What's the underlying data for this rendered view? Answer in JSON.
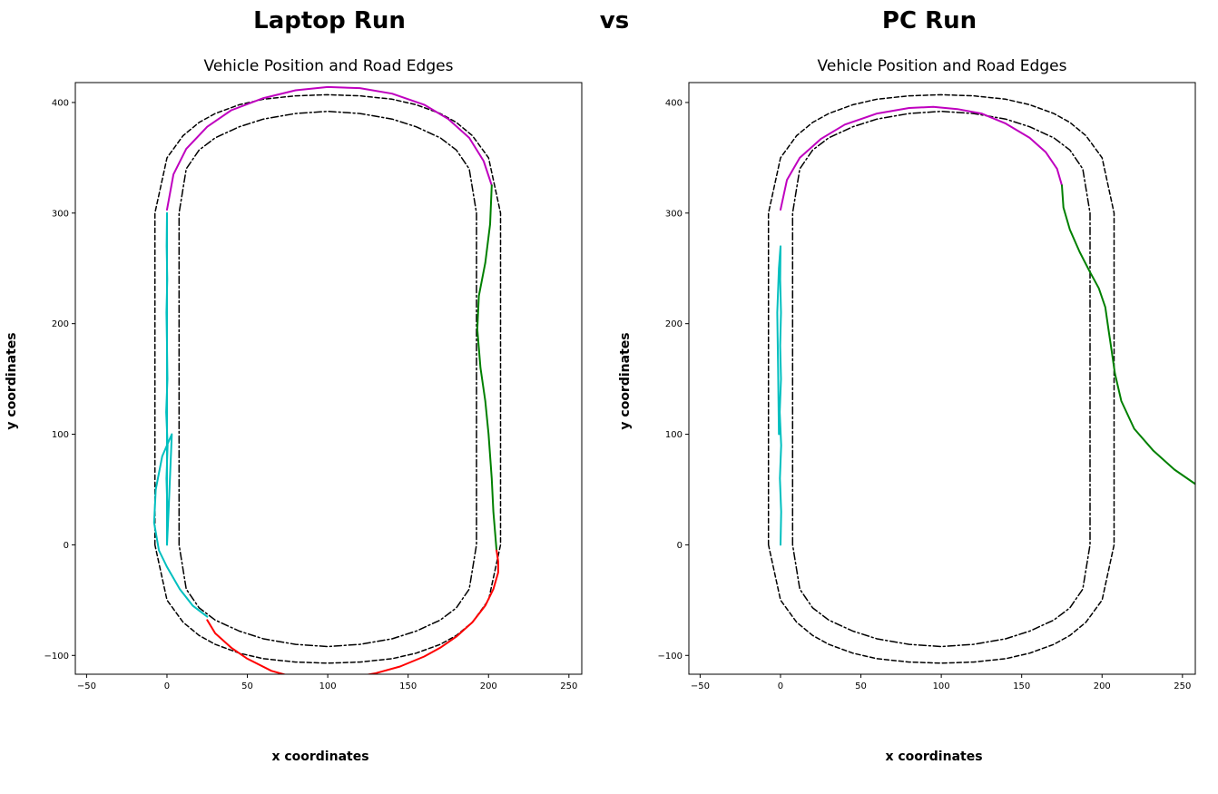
{
  "headings": {
    "left": "Laptop Run",
    "middle": "vs",
    "right": "PC Run"
  },
  "colors": {
    "outer_edge": "#000000",
    "inner_edge": "#000000",
    "straight_start": "#00bfbf",
    "curve_top": "#bf00bf",
    "straight_back": "#008000",
    "curve_bottom": "#ff0000"
  },
  "chart_data": [
    {
      "type": "line",
      "title": "Vehicle Position and Road Edges",
      "xlabel": "x coordinates",
      "ylabel": "y coordinates",
      "xlim": [
        -57,
        258
      ],
      "ylim": [
        -117,
        418
      ],
      "xticks": [
        -50,
        0,
        50,
        100,
        150,
        200,
        250
      ],
      "yticks": [
        -100,
        0,
        100,
        200,
        300,
        400
      ],
      "grid": false,
      "series": [
        {
          "key": "outer_edge",
          "style": "dashed",
          "x": [
            -7.5,
            -7.5,
            0,
            10,
            20,
            30,
            45,
            60,
            80,
            100,
            120,
            140,
            155,
            170,
            180,
            190,
            200,
            207.5,
            207.5,
            207.5,
            200,
            190,
            180,
            170,
            155,
            140,
            120,
            100,
            80,
            60,
            45,
            30,
            20,
            10,
            0,
            -7.5
          ],
          "y": [
            0,
            300,
            350,
            370,
            382,
            390,
            398,
            403,
            406,
            407,
            406,
            403,
            398,
            390,
            382,
            370,
            350,
            300,
            200,
            0,
            -50,
            -70,
            -82,
            -90,
            -98,
            -103,
            -106,
            -107,
            -106,
            -103,
            -98,
            -90,
            -82,
            -70,
            -50,
            0
          ]
        },
        {
          "key": "inner_edge",
          "style": "dashdot",
          "x": [
            7.5,
            7.5,
            12,
            20,
            30,
            45,
            60,
            80,
            100,
            120,
            140,
            155,
            170,
            180,
            188,
            192.5,
            192.5,
            192.5,
            188,
            180,
            170,
            155,
            140,
            120,
            100,
            80,
            60,
            45,
            30,
            20,
            12,
            7.5
          ],
          "y": [
            0,
            300,
            340,
            357,
            368,
            378,
            385,
            390,
            392,
            390,
            385,
            378,
            368,
            357,
            340,
            300,
            200,
            0,
            -40,
            -57,
            -68,
            -78,
            -85,
            -90,
            -92,
            -90,
            -85,
            -78,
            -68,
            -57,
            -40,
            0
          ]
        },
        {
          "key": "straight_start",
          "x": [
            0,
            0.3,
            -0.3,
            0.4,
            -0.5,
            0.3,
            0,
            -0.3,
            0.2,
            -0.2,
            0,
            0,
            0,
            1,
            3,
            -3,
            -7,
            -8,
            -5,
            0,
            8,
            16,
            25
          ],
          "y": [
            0,
            30,
            60,
            90,
            120,
            150,
            180,
            210,
            240,
            270,
            300,
            300,
            0,
            30,
            100,
            80,
            50,
            20,
            -5,
            -20,
            -40,
            -55,
            -65
          ]
        },
        {
          "key": "curve_top",
          "x": [
            0,
            4,
            12,
            25,
            40,
            60,
            80,
            100,
            120,
            140,
            160,
            175,
            188,
            197,
            202
          ],
          "y": [
            303,
            335,
            358,
            378,
            393,
            404,
            411,
            414,
            413,
            408,
            398,
            385,
            368,
            347,
            325
          ]
        },
        {
          "key": "straight_back",
          "x": [
            202,
            201,
            198,
            194,
            193,
            195,
            198,
            200,
            202,
            203,
            205
          ],
          "y": [
            325,
            290,
            255,
            225,
            195,
            160,
            130,
            100,
            60,
            30,
            -5
          ]
        },
        {
          "key": "curve_bottom",
          "x": [
            205,
            206,
            206,
            203,
            198,
            190,
            180,
            170,
            160,
            145,
            130,
            115,
            100,
            80,
            65,
            50,
            40,
            30,
            25
          ],
          "y": [
            -5,
            -15,
            -25,
            -40,
            -55,
            -70,
            -83,
            -93,
            -101,
            -110,
            -116,
            -120,
            -123,
            -120,
            -114,
            -103,
            -93,
            -80,
            -68
          ]
        }
      ]
    },
    {
      "type": "line",
      "title": "Vehicle Position and Road Edges",
      "xlabel": "x coordinates",
      "ylabel": "y coordinates",
      "xlim": [
        -57,
        258
      ],
      "ylim": [
        -117,
        418
      ],
      "xticks": [
        -50,
        0,
        50,
        100,
        150,
        200,
        250
      ],
      "yticks": [
        -100,
        0,
        100,
        200,
        300,
        400
      ],
      "grid": false,
      "series": [
        {
          "key": "outer_edge",
          "style": "dashed",
          "x": [
            -7.5,
            -7.5,
            0,
            10,
            20,
            30,
            45,
            60,
            80,
            100,
            120,
            140,
            155,
            170,
            180,
            190,
            200,
            207.5,
            207.5,
            207.5,
            200,
            190,
            180,
            170,
            155,
            140,
            120,
            100,
            80,
            60,
            45,
            30,
            20,
            10,
            0,
            -7.5
          ],
          "y": [
            0,
            300,
            350,
            370,
            382,
            390,
            398,
            403,
            406,
            407,
            406,
            403,
            398,
            390,
            382,
            370,
            350,
            300,
            200,
            0,
            -50,
            -70,
            -82,
            -90,
            -98,
            -103,
            -106,
            -107,
            -106,
            -103,
            -98,
            -90,
            -82,
            -70,
            -50,
            0
          ]
        },
        {
          "key": "inner_edge",
          "style": "dashdot",
          "x": [
            7.5,
            7.5,
            12,
            20,
            30,
            45,
            60,
            80,
            100,
            120,
            140,
            155,
            170,
            180,
            188,
            192.5,
            192.5,
            192.5,
            188,
            180,
            170,
            155,
            140,
            120,
            100,
            80,
            60,
            45,
            30,
            20,
            12,
            7.5
          ],
          "y": [
            0,
            300,
            340,
            357,
            368,
            378,
            385,
            390,
            392,
            390,
            385,
            378,
            368,
            357,
            340,
            300,
            200,
            0,
            -40,
            -57,
            -68,
            -78,
            -85,
            -90,
            -92,
            -90,
            -85,
            -78,
            -68,
            -57,
            -40,
            0
          ]
        },
        {
          "key": "straight_start",
          "x": [
            0,
            0.4,
            -0.4,
            0.4,
            -0.5,
            0.3,
            -0.2,
            0.3,
            -0.2,
            0,
            -1,
            -2,
            -1.5,
            -1
          ],
          "y": [
            0,
            30,
            60,
            90,
            120,
            150,
            180,
            210,
            240,
            270,
            250,
            210,
            160,
            100
          ]
        },
        {
          "key": "curve_top",
          "x": [
            0,
            4,
            12,
            25,
            40,
            60,
            80,
            95,
            110,
            125,
            140,
            155,
            165,
            172,
            175
          ],
          "y": [
            303,
            330,
            350,
            367,
            380,
            390,
            395,
            396,
            394,
            390,
            381,
            368,
            355,
            340,
            325
          ]
        },
        {
          "key": "straight_back",
          "x": [
            175,
            176,
            180,
            186,
            192,
            198,
            202,
            204,
            206,
            208,
            212,
            220,
            232,
            245,
            258
          ],
          "y": [
            325,
            305,
            285,
            265,
            248,
            232,
            215,
            195,
            175,
            155,
            130,
            105,
            85,
            68,
            55
          ]
        }
      ]
    }
  ]
}
